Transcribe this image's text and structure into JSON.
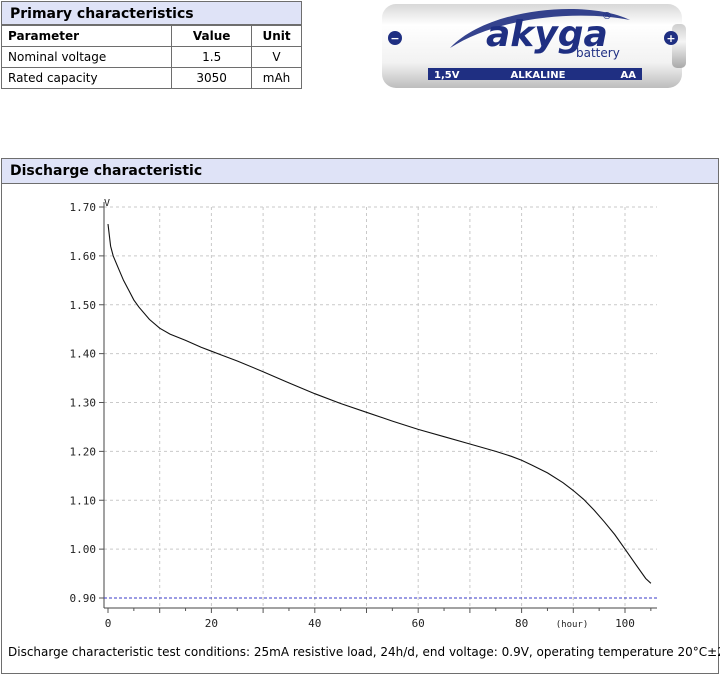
{
  "primary": {
    "title": "Primary characteristics",
    "headers": [
      "Parameter",
      "Value",
      "Unit"
    ],
    "rows": [
      [
        "Nominal voltage",
        "1.5",
        "V"
      ],
      [
        "Rated capacity",
        "3050",
        "mAh"
      ]
    ]
  },
  "battery": {
    "brand": "akyga",
    "sub": "battery",
    "registered": "®",
    "band_left": "1,5V",
    "band_mid": "ALKALINE",
    "band_right": "AA",
    "minus": "−",
    "plus": "+"
  },
  "discharge": {
    "title": "Discharge characteristic",
    "note": "Discharge characteristic test conditions: 25mA resistive load, 24h/d, end voltage: 0.9V, operating temperature 20°C±2°C"
  },
  "chart_data": {
    "type": "line",
    "ylabel": "V",
    "xlabel": "(hour)",
    "xlim": [
      0,
      106
    ],
    "ylim": [
      0.9,
      1.7
    ],
    "x_ticks": [
      0,
      20,
      40,
      60,
      80,
      100
    ],
    "x_tick_labels": [
      "0",
      "20",
      "40",
      "60",
      "80",
      "100"
    ],
    "y_ticks": [
      1.7,
      1.6,
      1.5,
      1.4,
      1.3,
      1.2,
      1.1,
      1.0,
      0.9
    ],
    "y_tick_labels": [
      "1.70",
      "1.60",
      "1.50",
      "1.40",
      "1.30",
      "1.20",
      "1.10",
      "1.00",
      "0.90"
    ],
    "grid": true,
    "cutoff_voltage": 0.9,
    "series": [
      {
        "x": [
          0,
          0.5,
          1,
          2,
          3,
          4,
          5,
          6,
          8,
          10,
          12,
          15,
          18,
          20,
          22,
          25,
          30,
          35,
          40,
          45,
          50,
          55,
          60,
          65,
          70,
          75,
          78,
          80,
          82,
          85,
          88,
          90,
          92,
          94,
          96,
          98,
          100,
          102,
          104,
          105
        ],
        "values": [
          1.665,
          1.62,
          1.6,
          1.575,
          1.55,
          1.53,
          1.51,
          1.495,
          1.47,
          1.452,
          1.44,
          1.427,
          1.413,
          1.405,
          1.397,
          1.385,
          1.363,
          1.34,
          1.318,
          1.298,
          1.28,
          1.262,
          1.245,
          1.23,
          1.215,
          1.2,
          1.19,
          1.182,
          1.172,
          1.156,
          1.136,
          1.12,
          1.102,
          1.08,
          1.056,
          1.03,
          1.0,
          0.97,
          0.94,
          0.93
        ]
      }
    ]
  }
}
